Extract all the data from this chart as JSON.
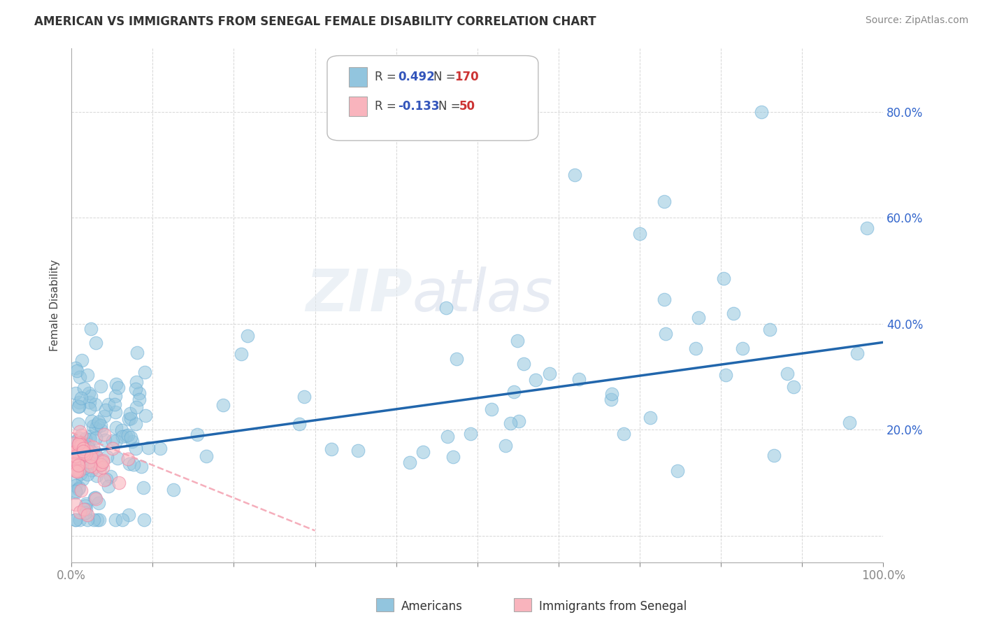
{
  "title": "AMERICAN VS IMMIGRANTS FROM SENEGAL FEMALE DISABILITY CORRELATION CHART",
  "source": "Source: ZipAtlas.com",
  "ylabel": "Female Disability",
  "xlim": [
    0.0,
    1.0
  ],
  "ylim": [
    -0.05,
    0.92
  ],
  "xtick_positions": [
    0.0,
    0.1,
    0.2,
    0.3,
    0.4,
    0.5,
    0.6,
    0.7,
    0.8,
    0.9,
    1.0
  ],
  "xticklabels": [
    "0.0%",
    "",
    "",
    "",
    "",
    "",
    "",
    "",
    "",
    "",
    "100.0%"
  ],
  "ytick_positions": [
    0.0,
    0.2,
    0.4,
    0.6,
    0.8
  ],
  "yticklabels_right": [
    "",
    "20.0%",
    "40.0%",
    "60.0%",
    "80.0%"
  ],
  "american_color": "#92C5DE",
  "american_edge_color": "#6AAED6",
  "senegal_color": "#F9B4BD",
  "senegal_edge_color": "#F080A0",
  "american_line_color": "#2166AC",
  "senegal_line_color": "#F4A0B0",
  "watermark": "ZIPatlas",
  "background_color": "#FFFFFF",
  "grid_color": "#CCCCCC",
  "american_line_x0": 0.0,
  "american_line_y0": 0.155,
  "american_line_x1": 1.0,
  "american_line_y1": 0.365,
  "senegal_line_x0": 0.0,
  "senegal_line_y0": 0.195,
  "senegal_line_x1": 0.3,
  "senegal_line_y1": 0.01
}
